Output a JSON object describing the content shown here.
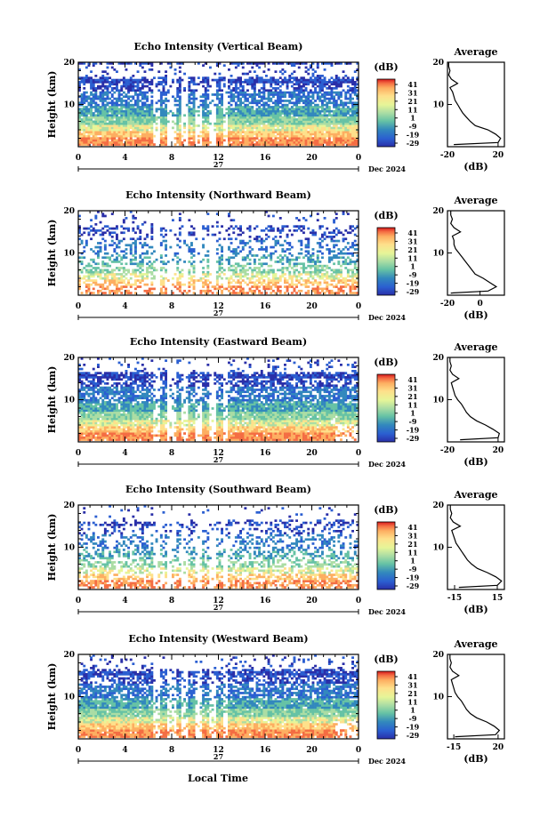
{
  "colorbar": {
    "unit_label": "(dB)",
    "ticks": [
      "41",
      "31",
      "21",
      "11",
      "1",
      "-9",
      "-19",
      "-29"
    ],
    "colors": [
      "#d7191c",
      "#f46d43",
      "#fdae61",
      "#fee08b",
      "#e6f598",
      "#abdda4",
      "#66c2a5",
      "#3288bd",
      "#2b5fd1",
      "#2a2fa8"
    ]
  },
  "x_axis": {
    "ticks": [
      "0",
      "4",
      "8",
      "12",
      "16",
      "20",
      "0"
    ],
    "day_label": "27",
    "month_label": "Dec 2024",
    "title": "Local Time"
  },
  "y_axis": {
    "label": "Height (km)",
    "ticks": [
      "20",
      "10"
    ]
  },
  "avg_panel_title": "Average",
  "avg_x_label": "(dB)",
  "chart_data": [
    {
      "type": "heatmap",
      "title": "Echo Intensity (Vertical Beam)",
      "ylabel": "Height (km)",
      "xlabel": "Local Time",
      "xlim": [
        0,
        24
      ],
      "ylim": [
        0,
        20
      ],
      "average": {
        "title": "Average",
        "xlabel": "(dB)",
        "xlim": [
          -20,
          25
        ],
        "xticks": [
          "-20",
          "20"
        ],
        "height_km": [
          0.5,
          1,
          2,
          3,
          4,
          5,
          6,
          7,
          8,
          9,
          10,
          11,
          12,
          13,
          14,
          15,
          16,
          17,
          18,
          19,
          20
        ],
        "db": [
          -15,
          20,
          22,
          18,
          12,
          2,
          -2,
          -5,
          -8,
          -10,
          -12,
          -14,
          -15,
          -16,
          -18,
          -12,
          -17,
          -19,
          -18,
          -19,
          -19
        ]
      }
    },
    {
      "type": "heatmap",
      "title": "Echo Intensity (Northward Beam)",
      "ylabel": "Height (km)",
      "xlabel": "Local Time",
      "xlim": [
        0,
        24
      ],
      "ylim": [
        0,
        20
      ],
      "average": {
        "title": "Average",
        "xlabel": "(dB)",
        "xlim": [
          -20,
          15
        ],
        "xticks": [
          "-20",
          "0"
        ],
        "height_km": [
          0.5,
          1,
          2,
          3,
          4,
          5,
          6,
          7,
          8,
          9,
          10,
          11,
          12,
          13,
          14,
          15,
          16,
          17,
          18,
          19,
          20
        ],
        "db": [
          -18,
          5,
          10,
          6,
          2,
          -3,
          -5,
          -7,
          -9,
          -11,
          -13,
          -15,
          -16,
          -16,
          -17,
          -12,
          -16,
          -18,
          -17,
          -18,
          -18
        ]
      }
    },
    {
      "type": "heatmap",
      "title": "Echo Intensity (Eastward Beam)",
      "ylabel": "Height (km)",
      "xlabel": "Local Time",
      "xlim": [
        0,
        24
      ],
      "ylim": [
        0,
        20
      ],
      "average": {
        "title": "Average",
        "xlabel": "(dB)",
        "xlim": [
          -20,
          25
        ],
        "xticks": [
          "-20",
          "20"
        ],
        "height_km": [
          0.5,
          1,
          2,
          3,
          4,
          5,
          6,
          7,
          8,
          9,
          10,
          11,
          12,
          13,
          14,
          15,
          16,
          17,
          18,
          19,
          20
        ],
        "db": [
          -10,
          20,
          21,
          16,
          10,
          3,
          -2,
          -5,
          -7,
          -9,
          -12,
          -14,
          -15,
          -16,
          -17,
          -11,
          -16,
          -18,
          -17,
          -18,
          -18
        ]
      }
    },
    {
      "type": "heatmap",
      "title": "Echo Intensity (Southward Beam)",
      "ylabel": "Height (km)",
      "xlabel": "Local Time",
      "xlim": [
        0,
        24
      ],
      "ylim": [
        0,
        20
      ],
      "average": {
        "title": "Average",
        "xlabel": "(dB)",
        "xlim": [
          -20,
          20
        ],
        "xticks": [
          "-15",
          "15"
        ],
        "height_km": [
          0.5,
          1,
          2,
          3,
          4,
          5,
          6,
          7,
          8,
          9,
          10,
          11,
          12,
          13,
          14,
          15,
          16,
          17,
          18,
          19,
          20
        ],
        "db": [
          -12,
          15,
          18,
          14,
          8,
          1,
          -3,
          -6,
          -8,
          -10,
          -12,
          -14,
          -15,
          -16,
          -17,
          -11,
          -16,
          -18,
          -17,
          -18,
          -18
        ]
      }
    },
    {
      "type": "heatmap",
      "title": "Echo Intensity (Westward Beam)",
      "ylabel": "Height (km)",
      "xlabel": "Local Time",
      "xlim": [
        0,
        24
      ],
      "ylim": [
        0,
        20
      ],
      "average": {
        "title": "Average",
        "xlabel": "(dB)",
        "xlim": [
          -20,
          25
        ],
        "xticks": [
          "-15",
          "20"
        ],
        "height_km": [
          0.5,
          1,
          2,
          3,
          4,
          5,
          6,
          7,
          8,
          9,
          10,
          11,
          12,
          13,
          14,
          15,
          16,
          17,
          18,
          19,
          20
        ],
        "db": [
          -14,
          18,
          21,
          17,
          11,
          3,
          -2,
          -5,
          -7,
          -9,
          -12,
          -14,
          -15,
          -16,
          -17,
          -11,
          -16,
          -18,
          -17,
          -18,
          -18
        ]
      }
    }
  ]
}
